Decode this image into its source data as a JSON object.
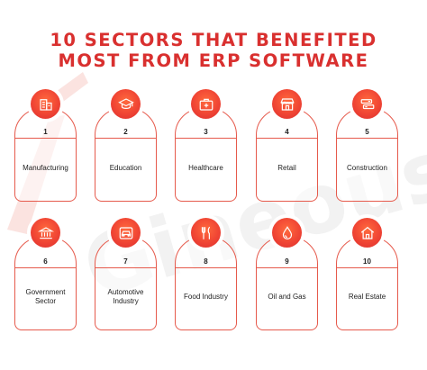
{
  "title": {
    "line1": "10 SECTORS THAT BENEFITED",
    "line2": "MOST FROM ERP SOFTWARE"
  },
  "watermark_text": "Gineous",
  "colors": {
    "accent": "#e8483a",
    "title": "#d9302f",
    "text": "#222222"
  },
  "sectors": [
    {
      "number": "1",
      "label": "Manufacturing",
      "icon": "factory-icon"
    },
    {
      "number": "2",
      "label": "Education",
      "icon": "graduation-cap-icon"
    },
    {
      "number": "3",
      "label": "Healthcare",
      "icon": "first-aid-kit-icon"
    },
    {
      "number": "4",
      "label": "Retail",
      "icon": "storefront-icon"
    },
    {
      "number": "5",
      "label": "Construction",
      "icon": "crane-icon"
    },
    {
      "number": "6",
      "label": "Government Sector",
      "icon": "government-building-icon"
    },
    {
      "number": "7",
      "label": "Automotive Industry",
      "icon": "car-icon"
    },
    {
      "number": "8",
      "label": "Food Industry",
      "icon": "fork-knife-icon"
    },
    {
      "number": "9",
      "label": "Oil and Gas",
      "icon": "oil-drop-icon"
    },
    {
      "number": "10",
      "label": "Real Estate",
      "icon": "house-icon"
    }
  ]
}
